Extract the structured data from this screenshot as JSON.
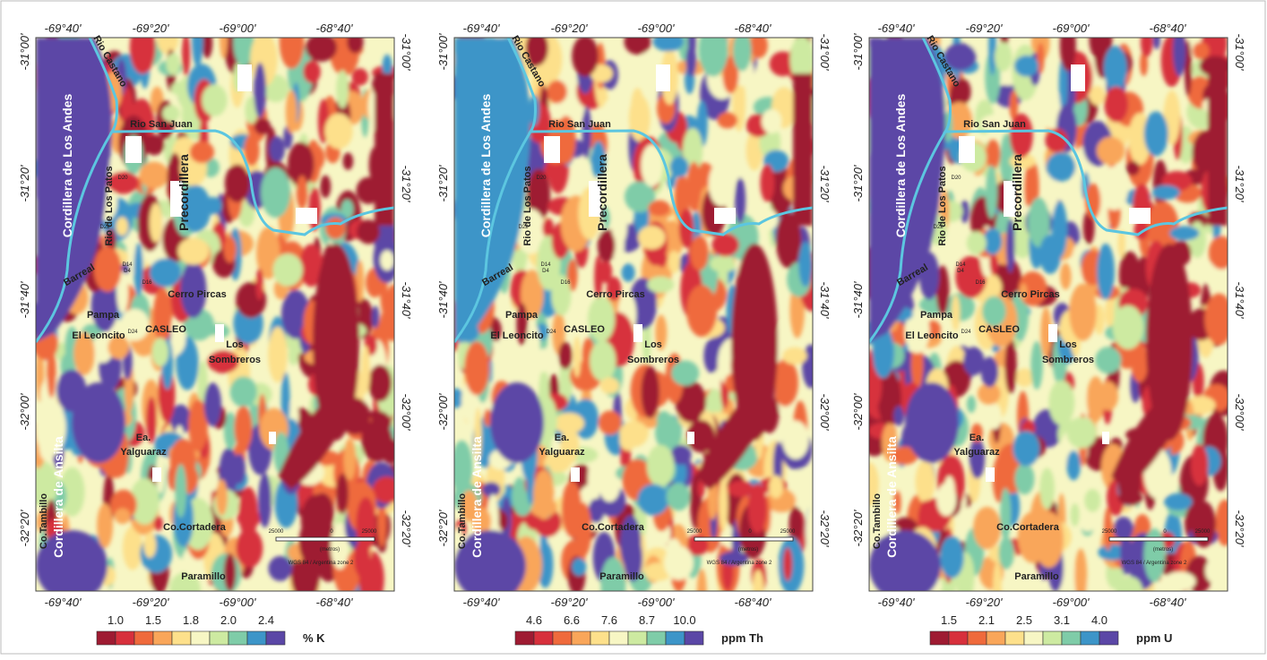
{
  "lon_ticks": [
    "-69°40'",
    "-69°20'",
    "-69°00'",
    "-68°40'"
  ],
  "lat_ticks": [
    "-31°00'",
    "-31°20'",
    "-31°40'",
    "-32°00'",
    "-32°20'"
  ],
  "place_labels": [
    "Rio Castano",
    "Cordillera de Los Andes",
    "Rio San Juan",
    "Rio de Los Patos",
    "Precordillera",
    "Barreal",
    "Cerro Pircas",
    "Pampa",
    "El Leoncito",
    "CASLEO",
    "Los",
    "Sombreros",
    "Ea.",
    "Yalguaraz",
    "Cordillera de Ansilta",
    "Co.Tambillo",
    "Co.Cortadera",
    "Paramillo",
    "D20",
    "D22",
    "D14",
    "D4",
    "D16",
    "D24"
  ],
  "scale_bar": [
    "25000",
    "0",
    "25000",
    "(metros)",
    "WGS 84 / Argentina zone 2"
  ],
  "legend_colors": [
    "#9e1b32",
    "#d7303c",
    "#ef6a3c",
    "#f9a65a",
    "#fde08b",
    "#f7f6c4",
    "#cdeaa1",
    "#7fcca8",
    "#3d95c8",
    "#5b47a6"
  ],
  "panels": [
    {
      "colorbar_ticks": [
        "1.0",
        "1.5",
        "1.8",
        "2.0",
        "2.4"
      ],
      "unit": "% K"
    },
    {
      "colorbar_ticks": [
        "4.6",
        "6.6",
        "7.6",
        "8.7",
        "10.0"
      ],
      "unit": "ppm Th"
    },
    {
      "colorbar_ticks": [
        "1.5",
        "2.1",
        "2.5",
        "3.1",
        "4.0"
      ],
      "unit": "ppm U"
    }
  ]
}
